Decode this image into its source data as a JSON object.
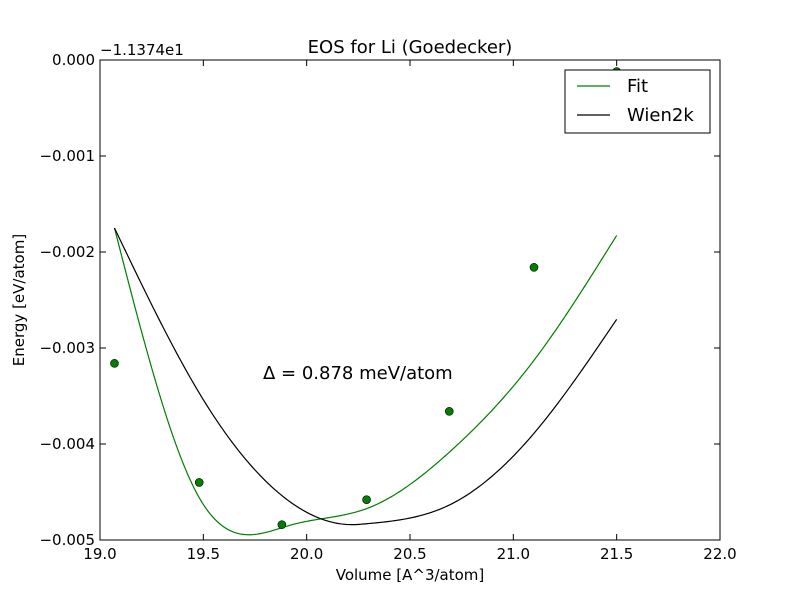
{
  "chart_data": {
    "type": "line",
    "title": "EOS for Li (Goedecker)",
    "xlabel": "Volume [A^3/atom]",
    "ylabel": "Energy [eV/atom]",
    "offset_label": "−1.1374e1",
    "xlim": [
      19.0,
      22.0
    ],
    "ylim": [
      -0.005,
      0.0
    ],
    "x_ticks": [
      19.0,
      19.5,
      20.0,
      20.5,
      21.0,
      21.5,
      22.0
    ],
    "x_tick_labels": [
      "19.0",
      "19.5",
      "20.0",
      "20.5",
      "21.0",
      "21.5",
      "22.0"
    ],
    "y_ticks": [
      0.0,
      -0.001,
      -0.002,
      -0.003,
      -0.004,
      -0.005
    ],
    "y_tick_labels": [
      "0.000",
      "−0.001",
      "−0.002",
      "−0.003",
      "−0.004",
      "−0.005"
    ],
    "grid": false,
    "legend_position": "top-right",
    "annotation": "Δ = 0.878 meV/atom",
    "points": {
      "color": "#007f00",
      "x": [
        19.07,
        19.48,
        19.88,
        20.29,
        20.69,
        21.1,
        21.5
      ],
      "y": [
        -0.00316,
        -0.0044,
        -0.00484,
        -0.00458,
        -0.00366,
        -0.00216,
        -0.00012
      ]
    },
    "series": [
      {
        "name": "Fit",
        "color": "#007f00",
        "v0": 19.93,
        "e0": -0.00484,
        "x_range": [
          19.07,
          21.5
        ],
        "shape": [
          [
            -0.86,
            1.0
          ],
          [
            -0.45,
            0.091
          ],
          [
            0.36,
            0.054
          ],
          [
            0.76,
            0.244
          ],
          [
            1.17,
            0.554
          ],
          [
            1.57,
            0.975
          ]
        ]
      },
      {
        "name": "Wien2k",
        "color": "#000000",
        "v0": 20.22,
        "e0": -0.00484,
        "x_range": [
          19.07,
          21.5
        ],
        "shape": [
          [
            -1.15,
            1.0
          ],
          [
            -0.74,
            0.444
          ],
          [
            -0.34,
            0.098
          ],
          [
            0.07,
            0.003
          ],
          [
            0.47,
            0.066
          ],
          [
            0.88,
            0.308
          ],
          [
            1.28,
            0.692
          ]
        ]
      }
    ],
    "curve_scale": 0.00309
  }
}
